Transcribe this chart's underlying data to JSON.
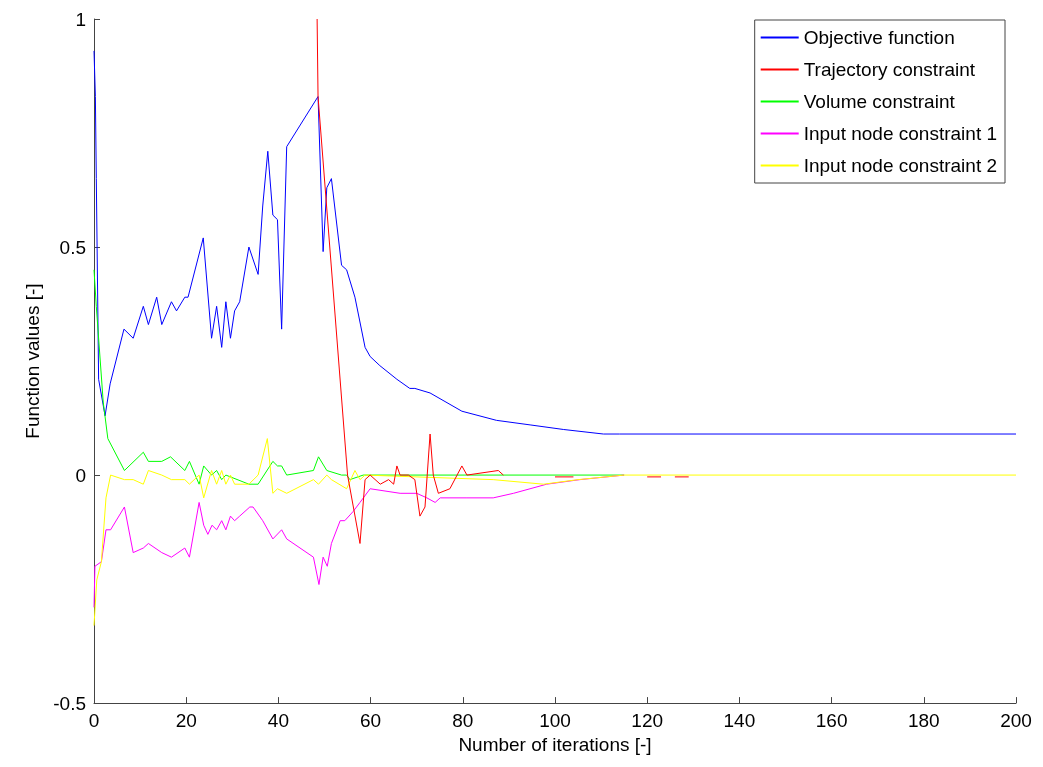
{
  "chart_data": {
    "type": "line",
    "xlabel": "Number of iterations [-]",
    "ylabel": "Function values [-]",
    "xlim": [
      0,
      200
    ],
    "xticks": [
      0,
      20,
      40,
      60,
      80,
      100,
      120,
      140,
      160,
      180,
      200
    ],
    "ylim": [
      -0.5,
      1
    ],
    "yticks": [
      -0.5,
      0,
      0.5,
      1
    ],
    "grid": false,
    "legend": "top right",
    "marker": "none",
    "line_style": "solid",
    "series": [
      {
        "name": "Objective function",
        "color": "#0000ff",
        "x": [
          0,
          0.3,
          0.5,
          1,
          2.4,
          3.5,
          6.5,
          8.5,
          10.7,
          11.8,
          13.6,
          14.7,
          16.8,
          17.9,
          19.7,
          20.4,
          23.7,
          25.5,
          26.6,
          27.7,
          28.6,
          29.6,
          30.5,
          31.6,
          33.6,
          35.6,
          36.6,
          37.7,
          38.8,
          39.8,
          40.7,
          41.8,
          48.6,
          49.7,
          50.5,
          51.5,
          53.7,
          54.8,
          56.6,
          58.8,
          59.9,
          62,
          65.7,
          68.5,
          69.6,
          72.9,
          79.8,
          87.3,
          94.6,
          101.8,
          110.5,
          114,
          200
        ],
        "values": [
          0.93,
          0.83,
          0.65,
          0.21,
          0.13,
          0.2,
          0.32,
          0.3,
          0.37,
          0.33,
          0.39,
          0.33,
          0.38,
          0.36,
          0.39,
          0.39,
          0.52,
          0.3,
          0.37,
          0.28,
          0.38,
          0.3,
          0.36,
          0.38,
          0.5,
          0.44,
          0.59,
          0.71,
          0.57,
          0.56,
          0.32,
          0.72,
          0.83,
          0.49,
          0.63,
          0.65,
          0.46,
          0.45,
          0.39,
          0.28,
          0.26,
          0.24,
          0.21,
          0.19,
          0.19,
          0.18,
          0.14,
          0.12,
          0.11,
          0.1,
          0.09,
          0.09,
          0.09
        ]
      },
      {
        "name": "Trajectory constraint",
        "color": "#ff0000",
        "x": [
          48.4,
          48.6,
          55,
          57.7,
          58.8,
          59.9,
          62.1,
          63.9,
          65,
          65.7,
          66.4,
          68.2,
          69.6,
          70.7,
          71.8,
          72.9,
          73.6,
          74.7,
          77.2,
          79.8,
          80.9,
          87.7,
          88.8,
          91,
          100,
          104,
          110,
          120,
          123,
          124,
          126,
          129
        ],
        "values": [
          1,
          0.83,
          0,
          -0.15,
          -0.01,
          0,
          -0.02,
          -0.01,
          -0.02,
          0.02,
          0,
          0,
          -0.01,
          -0.09,
          -0.07,
          0.09,
          0,
          -0.04,
          -0.03,
          0.02,
          0,
          0.01,
          0,
          null,
          -0.004,
          -0.004,
          null,
          -0.004,
          -0.004,
          null,
          -0.004,
          -0.004
        ]
      },
      {
        "name": "Volume constraint",
        "color": "#00ff00",
        "x": [
          0,
          0.5,
          2,
          3,
          6.6,
          10.7,
          11.8,
          14.7,
          16.6,
          19.7,
          20.7,
          22.8,
          23.8,
          25.5,
          26.6,
          27.7,
          28.6,
          33.6,
          35.6,
          38.8,
          39.8,
          40.7,
          41.8,
          47.6,
          48.7,
          50.5,
          53.7,
          54.8,
          55.5,
          58.4,
          115
        ],
        "values": [
          0.45,
          0.37,
          0.16,
          0.08,
          0.01,
          0.05,
          0.03,
          0.03,
          0.04,
          0.01,
          0.03,
          -0.02,
          0.02,
          0,
          0.01,
          -0.01,
          0,
          -0.02,
          -0.02,
          0.03,
          0.02,
          0.02,
          0,
          0.01,
          0.04,
          0.01,
          0,
          0,
          -0.01,
          0,
          0
        ]
      },
      {
        "name": "Input node constraint 1",
        "color": "#ff00ff",
        "x": [
          0,
          0.2,
          1.6,
          2.6,
          3.6,
          6.6,
          8.5,
          10.7,
          11.8,
          14.7,
          16.8,
          19.7,
          20.7,
          22.8,
          23.8,
          24.7,
          25.6,
          26.6,
          27.7,
          28.6,
          29.6,
          30.5,
          31.6,
          33.8,
          34.5,
          36.6,
          38.8,
          40.7,
          41.8,
          47.6,
          48.8,
          49.7,
          50.6,
          51.5,
          53.4,
          54.4,
          56.2,
          57.7,
          59.9,
          66.4,
          70,
          72.2,
          74,
          75.1,
          80.9,
          86.6,
          91,
          98.2,
          105.4,
          115
        ],
        "values": [
          -0.29,
          -0.2,
          -0.19,
          -0.12,
          -0.12,
          -0.07,
          -0.17,
          -0.16,
          -0.15,
          -0.17,
          -0.18,
          -0.16,
          -0.18,
          -0.06,
          -0.11,
          -0.13,
          -0.11,
          -0.12,
          -0.1,
          -0.12,
          -0.09,
          -0.1,
          -0.09,
          -0.07,
          -0.07,
          -0.1,
          -0.14,
          -0.12,
          -0.14,
          -0.18,
          -0.24,
          -0.18,
          -0.2,
          -0.15,
          -0.1,
          -0.1,
          -0.08,
          -0.06,
          -0.03,
          -0.04,
          -0.04,
          -0.05,
          -0.06,
          -0.05,
          -0.05,
          -0.05,
          -0.04,
          -0.02,
          -0.01,
          0
        ]
      },
      {
        "name": "Input node constraint 2",
        "color": "#ffff00",
        "x": [
          0,
          0.6,
          1.6,
          2.6,
          3.6,
          6.6,
          8.5,
          10.7,
          11.8,
          14.7,
          16.8,
          19.7,
          20.7,
          22.8,
          23.8,
          25.5,
          26.6,
          27.7,
          28.6,
          29.6,
          30.5,
          33.6,
          35.6,
          37.6,
          38.8,
          39.8,
          41.8,
          47.6,
          48.7,
          50.5,
          51.5,
          54.8,
          56.6,
          57.7,
          58.8,
          86.6,
          97.5,
          105,
          115,
          200
        ],
        "values": [
          -0.33,
          -0.23,
          -0.19,
          -0.05,
          0,
          -0.01,
          -0.01,
          -0.02,
          0.01,
          0,
          -0.01,
          -0.01,
          -0.02,
          0,
          -0.05,
          0.01,
          -0.02,
          0.01,
          -0.02,
          0,
          -0.02,
          -0.02,
          0,
          0.08,
          -0.04,
          -0.03,
          -0.04,
          -0.01,
          -0.02,
          0,
          -0.01,
          -0.03,
          0.01,
          -0.01,
          0,
          -0.01,
          -0.02,
          -0.01,
          0,
          0
        ]
      }
    ]
  }
}
